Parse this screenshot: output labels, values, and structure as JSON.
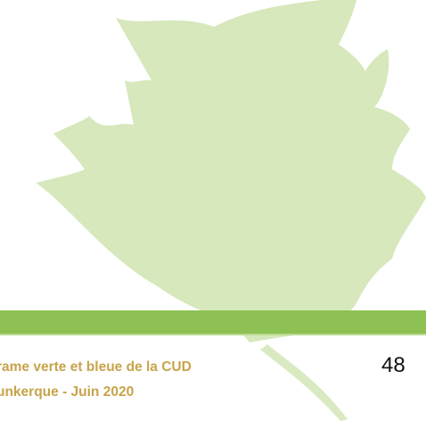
{
  "footer": {
    "line1": "rame verte et bleue de la CUD",
    "line2": "unkerque - Juin 2020"
  },
  "page_number": "48",
  "colors": {
    "leaf": "#d6e8bc",
    "band": "#8dc153",
    "footer_text": "#c7a44a"
  },
  "icons": {
    "background": "leaf-icon"
  }
}
